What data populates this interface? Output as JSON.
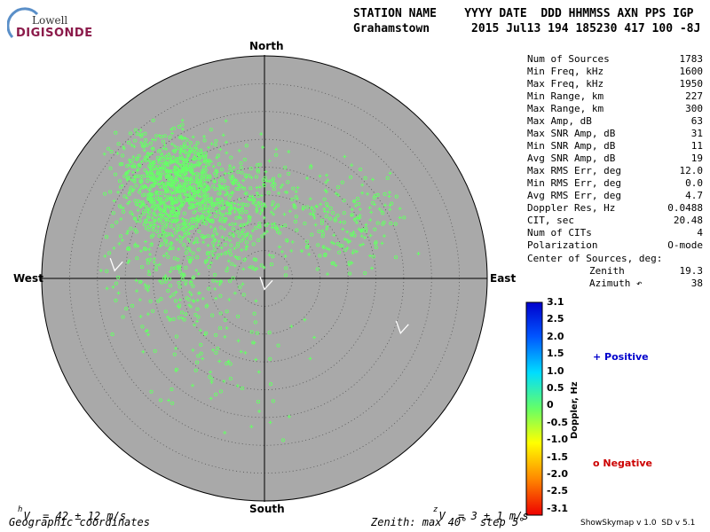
{
  "logo": {
    "lowell": "Lowell",
    "digisonde": "DIGISONDE"
  },
  "header": {
    "line1": "STATION NAME    YYYY DATE  DDD HHMMSS AXN PPS IGP",
    "line2": "Grahamstown      2015 Jul13 194 185230 417 100 -8J"
  },
  "directions": {
    "north": "North",
    "south": "South",
    "east": "East",
    "west": "West"
  },
  "stats": [
    {
      "label": "Num of Sources",
      "value": "1783"
    },
    {
      "label": "Min Freq, kHz",
      "value": "1600"
    },
    {
      "label": "Max Freq, kHz",
      "value": "1950"
    },
    {
      "label": "Min Range, km",
      "value": "227"
    },
    {
      "label": "Max Range, km",
      "value": "300"
    },
    {
      "label": "Max Amp, dB",
      "value": "63"
    },
    {
      "label": "Max SNR Amp, dB",
      "value": "31"
    },
    {
      "label": "Min SNR Amp, dB",
      "value": "11"
    },
    {
      "label": "Avg SNR Amp, dB",
      "value": "19"
    },
    {
      "label": "Max RMS Err, deg",
      "value": "12.0"
    },
    {
      "label": "Min RMS Err, deg",
      "value": "0.0"
    },
    {
      "label": "Avg RMS Err, deg",
      "value": "4.7"
    },
    {
      "label": "Doppler Res, Hz",
      "value": "0.0488"
    },
    {
      "label": "CIT, sec",
      "value": "20.48"
    },
    {
      "label": "Num of CITs",
      "value": "4"
    },
    {
      "label": "Polarization",
      "value": "O-mode"
    }
  ],
  "center": {
    "title": "Center of Sources, deg:",
    "zenith_label": "Zenith",
    "zenith_value": "19.3",
    "azimuth_label": "Azimuth ↶",
    "azimuth_value": "38"
  },
  "colorbar": {
    "ticks": [
      "3.1",
      "2.5",
      "2.0",
      "1.5",
      "1.0",
      "0.5",
      "0",
      "-0.5",
      "-1.0",
      "-1.5",
      "-2.0",
      "-2.5",
      "-3.1"
    ],
    "label": "Doppler, Hz"
  },
  "legend": {
    "positive": "+ Positive",
    "negative": "o Negative",
    "positive_color": "#0000cc",
    "negative_color": "#cc0000"
  },
  "footer": {
    "vh": "V  = 42 ± 12 m/s",
    "vh_sub": "h",
    "vz": "V  = 3 ± 1 m/s",
    "vz_sub": "z",
    "coords": "Geographic coordinates",
    "zenith": "Zenith: max 40°  step 5°",
    "version": "ShowSkymap v 1.0  SD v 5.1"
  },
  "chart_data": {
    "type": "scatter",
    "projection": "polar-skymap",
    "zenith_max_deg": 40,
    "zenith_step_deg": 5,
    "plot_fill": "#a9a9a9",
    "point_color": "#66ff66",
    "clusters": [
      {
        "azimuth_deg": 315,
        "zenith_deg": 24,
        "spread_deg": 7,
        "count": 820
      },
      {
        "azimuth_deg": 340,
        "zenith_deg": 14,
        "spread_deg": 8,
        "count": 330
      },
      {
        "azimuth_deg": 280,
        "zenith_deg": 16,
        "spread_deg": 9,
        "count": 260
      },
      {
        "azimuth_deg": 55,
        "zenith_deg": 18,
        "spread_deg": 8,
        "count": 200
      },
      {
        "azimuth_deg": 210,
        "zenith_deg": 16,
        "spread_deg": 10,
        "count": 90
      }
    ],
    "velocity_arrows": [
      {
        "azimuth_deg": 275,
        "zenith_deg": 27
      },
      {
        "azimuth_deg": 180,
        "zenith_deg": 1
      },
      {
        "azimuth_deg": 110,
        "zenith_deg": 26
      }
    ]
  }
}
